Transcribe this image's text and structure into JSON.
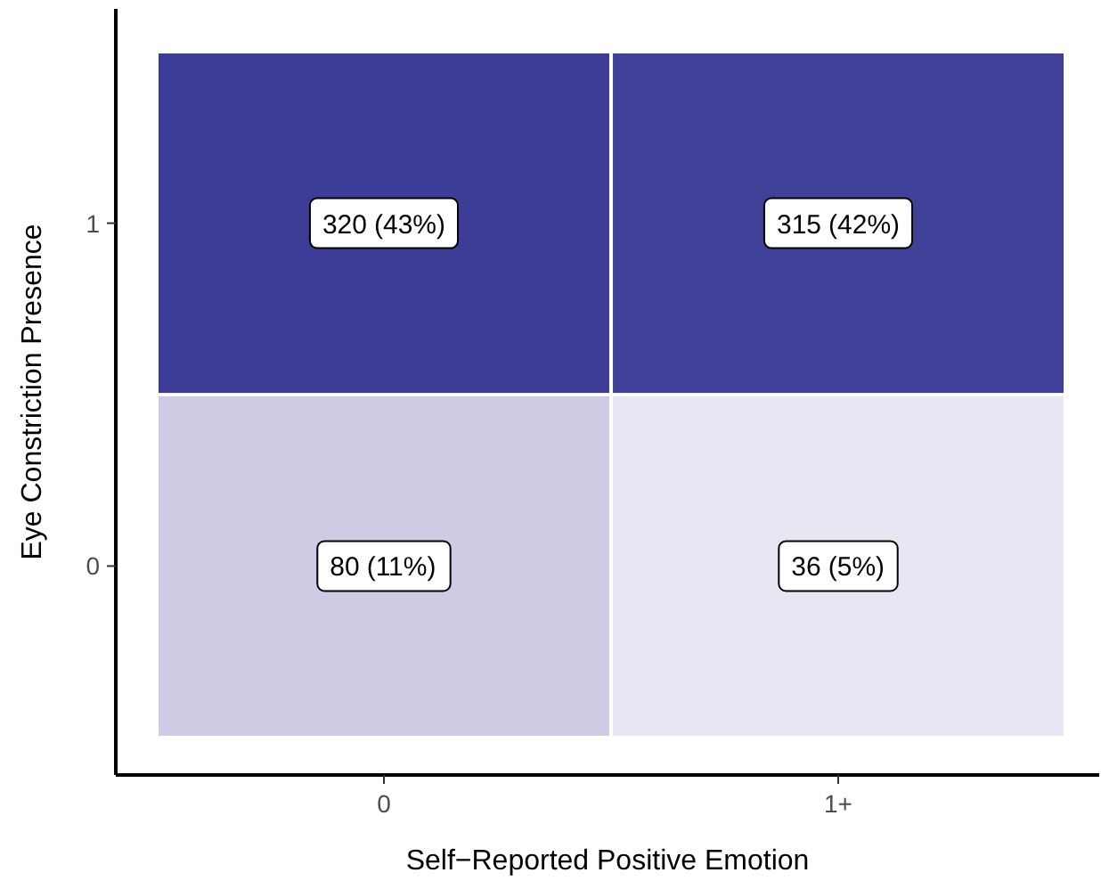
{
  "chart_data": {
    "type": "heatmap",
    "xlabel": "Self−Reported Positive Emotion",
    "ylabel": "Eye Constriction Presence",
    "categories": [
      "0",
      "1+"
    ],
    "y_categories": [
      "1",
      "0"
    ],
    "cells": [
      [
        320,
        315
      ],
      [
        80,
        36
      ]
    ],
    "data_labels": true,
    "annotations": [
      "(43%)",
      "(42%)",
      "(11%)",
      "(5%)"
    ],
    "colors": [
      "#e9e6f3",
      "#3d3d97"
    ]
  }
}
